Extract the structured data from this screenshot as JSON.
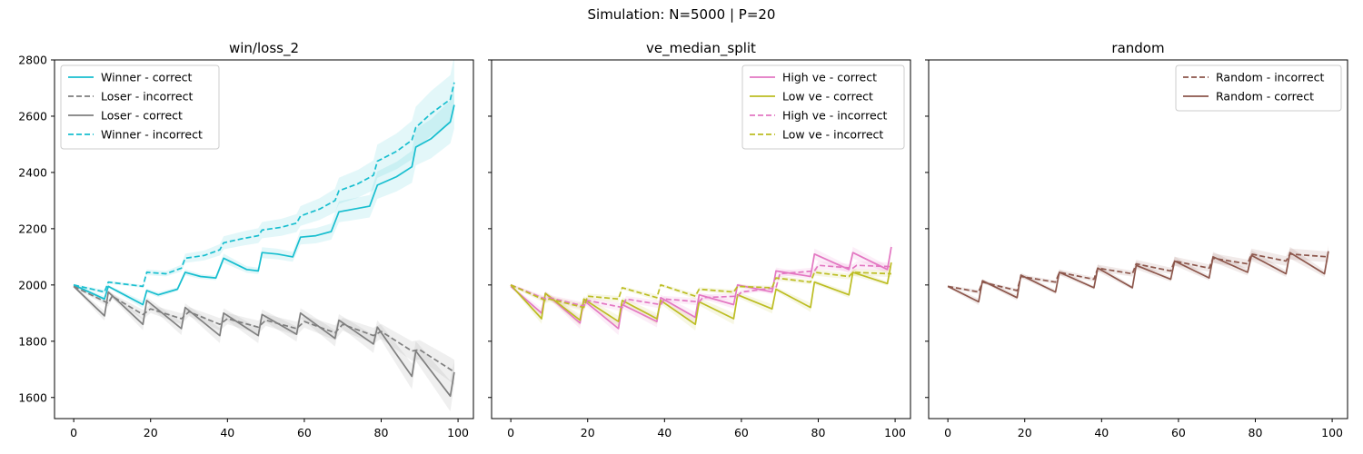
{
  "figure": {
    "title": "Simulation: N=5000 | P=20"
  },
  "colors": {
    "cyan": "#17becf",
    "gray": "#7f7f7f",
    "pink": "#e377c2",
    "olive": "#bcbd22",
    "brown": "#8c564b"
  },
  "chart_data": [
    {
      "type": "line",
      "title": "win/loss_2",
      "xlabel": "",
      "ylabel": "",
      "xlim": [
        -5,
        104
      ],
      "ylim": [
        1525,
        2800
      ],
      "xticks": [
        0,
        20,
        40,
        60,
        80,
        100
      ],
      "yticks": [
        1600,
        1800,
        2000,
        2200,
        2400,
        2600,
        2800
      ],
      "grid": false,
      "legend": "top-left",
      "series": [
        {
          "name": "Winner - correct",
          "color": "#17becf",
          "dash": "solid",
          "points": [
            [
              0,
              2000
            ],
            [
              8,
              1950
            ],
            [
              9,
              1995
            ],
            [
              18,
              1930
            ],
            [
              19,
              1980
            ],
            [
              22,
              1965
            ],
            [
              27,
              1985
            ],
            [
              29,
              2045
            ],
            [
              33,
              2030
            ],
            [
              37,
              2025
            ],
            [
              39,
              2095
            ],
            [
              45,
              2055
            ],
            [
              48,
              2050
            ],
            [
              49,
              2115
            ],
            [
              53,
              2110
            ],
            [
              57,
              2100
            ],
            [
              59,
              2170
            ],
            [
              63,
              2175
            ],
            [
              67,
              2190
            ],
            [
              69,
              2260
            ],
            [
              73,
              2270
            ],
            [
              77,
              2280
            ],
            [
              79,
              2355
            ],
            [
              84,
              2385
            ],
            [
              88,
              2420
            ],
            [
              89,
              2490
            ],
            [
              93,
              2520
            ],
            [
              98,
              2580
            ],
            [
              99,
              2640
            ]
          ]
        },
        {
          "name": "Loser - incorrect",
          "color": "#7f7f7f",
          "dash": "dashed",
          "points": [
            [
              0,
              1995
            ],
            [
              9,
              1935
            ],
            [
              10,
              1960
            ],
            [
              18,
              1895
            ],
            [
              20,
              1915
            ],
            [
              28,
              1880
            ],
            [
              30,
              1905
            ],
            [
              38,
              1860
            ],
            [
              40,
              1880
            ],
            [
              48,
              1850
            ],
            [
              50,
              1875
            ],
            [
              58,
              1845
            ],
            [
              60,
              1870
            ],
            [
              68,
              1830
            ],
            [
              70,
              1860
            ],
            [
              78,
              1820
            ],
            [
              80,
              1835
            ],
            [
              88,
              1765
            ],
            [
              90,
              1770
            ],
            [
              98,
              1700
            ],
            [
              99,
              1690
            ]
          ]
        },
        {
          "name": "Loser - correct",
          "color": "#7f7f7f",
          "dash": "solid",
          "points": [
            [
              0,
              1995
            ],
            [
              8,
              1890
            ],
            [
              9,
              1975
            ],
            [
              18,
              1860
            ],
            [
              19,
              1945
            ],
            [
              28,
              1845
            ],
            [
              29,
              1920
            ],
            [
              38,
              1820
            ],
            [
              39,
              1900
            ],
            [
              48,
              1820
            ],
            [
              49,
              1895
            ],
            [
              58,
              1825
            ],
            [
              59,
              1900
            ],
            [
              68,
              1810
            ],
            [
              69,
              1875
            ],
            [
              78,
              1790
            ],
            [
              79,
              1850
            ],
            [
              88,
              1675
            ],
            [
              89,
              1765
            ],
            [
              98,
              1605
            ],
            [
              99,
              1690
            ]
          ]
        },
        {
          "name": "Winner - incorrect",
          "color": "#17becf",
          "dash": "dashed",
          "points": [
            [
              0,
              2000
            ],
            [
              8,
              1975
            ],
            [
              9,
              2010
            ],
            [
              18,
              1995
            ],
            [
              19,
              2045
            ],
            [
              24,
              2040
            ],
            [
              28,
              2060
            ],
            [
              29,
              2095
            ],
            [
              34,
              2105
            ],
            [
              38,
              2125
            ],
            [
              39,
              2150
            ],
            [
              44,
              2165
            ],
            [
              48,
              2175
            ],
            [
              49,
              2195
            ],
            [
              54,
              2205
            ],
            [
              58,
              2220
            ],
            [
              59,
              2245
            ],
            [
              64,
              2270
            ],
            [
              68,
              2300
            ],
            [
              69,
              2335
            ],
            [
              74,
              2360
            ],
            [
              78,
              2390
            ],
            [
              79,
              2440
            ],
            [
              84,
              2475
            ],
            [
              88,
              2515
            ],
            [
              89,
              2560
            ],
            [
              93,
              2610
            ],
            [
              98,
              2660
            ],
            [
              99,
              2720
            ]
          ]
        }
      ]
    },
    {
      "type": "line",
      "title": "ve_median_split",
      "xlabel": "",
      "ylabel": "",
      "xlim": [
        -5,
        104
      ],
      "ylim": [
        1525,
        2800
      ],
      "xticks": [
        0,
        20,
        40,
        60,
        80,
        100
      ],
      "yticks": [
        1600,
        1800,
        2000,
        2200,
        2400,
        2600,
        2800
      ],
      "grid": false,
      "legend": "top-right",
      "series": [
        {
          "name": "High ve - correct",
          "color": "#e377c2",
          "dash": "solid",
          "points": [
            [
              0,
              1995
            ],
            [
              8,
              1900
            ],
            [
              9,
              1970
            ],
            [
              18,
              1865
            ],
            [
              19,
              1945
            ],
            [
              28,
              1845
            ],
            [
              29,
              1930
            ],
            [
              38,
              1870
            ],
            [
              39,
              1955
            ],
            [
              48,
              1885
            ],
            [
              49,
              1965
            ],
            [
              58,
              1930
            ],
            [
              59,
              2000
            ],
            [
              68,
              1975
            ],
            [
              69,
              2050
            ],
            [
              78,
              2030
            ],
            [
              79,
              2110
            ],
            [
              88,
              2055
            ],
            [
              89,
              2115
            ],
            [
              98,
              2055
            ],
            [
              99,
              2135
            ]
          ]
        },
        {
          "name": "Low ve - correct",
          "color": "#bcbd22",
          "dash": "solid",
          "points": [
            [
              0,
              2000
            ],
            [
              8,
              1880
            ],
            [
              9,
              1970
            ],
            [
              18,
              1875
            ],
            [
              19,
              1950
            ],
            [
              28,
              1870
            ],
            [
              29,
              1945
            ],
            [
              38,
              1880
            ],
            [
              39,
              1945
            ],
            [
              48,
              1860
            ],
            [
              49,
              1940
            ],
            [
              58,
              1880
            ],
            [
              59,
              1965
            ],
            [
              68,
              1915
            ],
            [
              69,
              1985
            ],
            [
              78,
              1920
            ],
            [
              79,
              2010
            ],
            [
              88,
              1965
            ],
            [
              89,
              2045
            ],
            [
              98,
              2005
            ],
            [
              99,
              2080
            ]
          ]
        },
        {
          "name": "High ve - incorrect",
          "color": "#e377c2",
          "dash": "dashed",
          "points": [
            [
              0,
              2000
            ],
            [
              9,
              1950
            ],
            [
              10,
              1955
            ],
            [
              19,
              1925
            ],
            [
              20,
              1945
            ],
            [
              29,
              1920
            ],
            [
              30,
              1950
            ],
            [
              39,
              1930
            ],
            [
              40,
              1950
            ],
            [
              49,
              1940
            ],
            [
              50,
              1955
            ],
            [
              59,
              1960
            ],
            [
              60,
              1975
            ],
            [
              69,
              1990
            ],
            [
              70,
              2040
            ],
            [
              79,
              2050
            ],
            [
              80,
              2070
            ],
            [
              89,
              2060
            ],
            [
              90,
              2070
            ],
            [
              99,
              2065
            ]
          ]
        },
        {
          "name": "Low ve - incorrect",
          "color": "#bcbd22",
          "dash": "dashed",
          "points": [
            [
              0,
              2000
            ],
            [
              9,
              1945
            ],
            [
              10,
              1950
            ],
            [
              19,
              1920
            ],
            [
              20,
              1960
            ],
            [
              28,
              1950
            ],
            [
              29,
              1990
            ],
            [
              38,
              1955
            ],
            [
              39,
              2000
            ],
            [
              48,
              1960
            ],
            [
              49,
              1985
            ],
            [
              58,
              1975
            ],
            [
              59,
              1995
            ],
            [
              68,
              1990
            ],
            [
              69,
              2025
            ],
            [
              78,
              2010
            ],
            [
              79,
              2045
            ],
            [
              88,
              2030
            ],
            [
              89,
              2045
            ],
            [
              99,
              2040
            ]
          ]
        }
      ]
    },
    {
      "type": "line",
      "title": "random",
      "xlabel": "",
      "ylabel": "",
      "xlim": [
        -5,
        104
      ],
      "ylim": [
        1525,
        2800
      ],
      "xticks": [
        0,
        20,
        40,
        60,
        80,
        100
      ],
      "yticks": [
        1600,
        1800,
        2000,
        2200,
        2400,
        2600,
        2800
      ],
      "grid": false,
      "legend": "top-right",
      "series": [
        {
          "name": "Random - incorrect",
          "color": "#8c564b",
          "dash": "dashed",
          "points": [
            [
              0,
              1995
            ],
            [
              8,
              1975
            ],
            [
              9,
              2010
            ],
            [
              18,
              1980
            ],
            [
              19,
              2030
            ],
            [
              28,
              2010
            ],
            [
              29,
              2045
            ],
            [
              38,
              2020
            ],
            [
              39,
              2060
            ],
            [
              48,
              2040
            ],
            [
              49,
              2075
            ],
            [
              58,
              2050
            ],
            [
              59,
              2085
            ],
            [
              68,
              2060
            ],
            [
              69,
              2095
            ],
            [
              78,
              2075
            ],
            [
              79,
              2110
            ],
            [
              88,
              2085
            ],
            [
              89,
              2110
            ],
            [
              99,
              2100
            ]
          ]
        },
        {
          "name": "Random - correct",
          "color": "#8c564b",
          "dash": "solid",
          "points": [
            [
              0,
              1995
            ],
            [
              8,
              1940
            ],
            [
              9,
              2015
            ],
            [
              18,
              1955
            ],
            [
              19,
              2035
            ],
            [
              28,
              1975
            ],
            [
              29,
              2045
            ],
            [
              38,
              1990
            ],
            [
              39,
              2060
            ],
            [
              48,
              1990
            ],
            [
              49,
              2070
            ],
            [
              58,
              2020
            ],
            [
              59,
              2085
            ],
            [
              68,
              2025
            ],
            [
              69,
              2100
            ],
            [
              78,
              2045
            ],
            [
              79,
              2105
            ],
            [
              88,
              2040
            ],
            [
              89,
              2115
            ],
            [
              98,
              2040
            ],
            [
              99,
              2120
            ]
          ]
        }
      ]
    }
  ]
}
